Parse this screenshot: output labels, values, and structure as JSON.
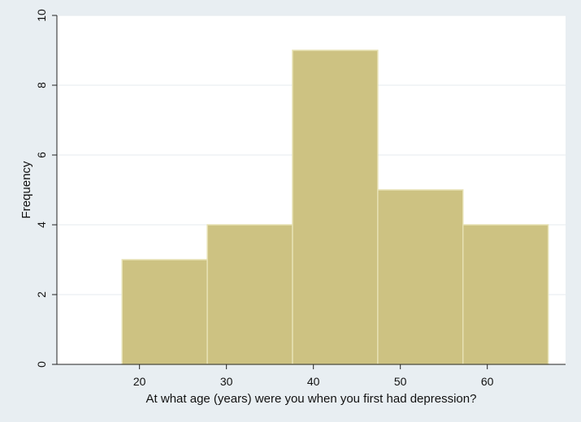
{
  "chart_data": {
    "type": "bar",
    "subtype": "histogram",
    "xlabel": "At what age (years) were you when you first had depression?",
    "ylabel": "Frequency",
    "bins": [
      {
        "from": 18.0,
        "to": 27.8,
        "value": 3
      },
      {
        "from": 27.8,
        "to": 37.6,
        "value": 4
      },
      {
        "from": 37.6,
        "to": 47.4,
        "value": 9
      },
      {
        "from": 47.4,
        "to": 57.2,
        "value": 5
      },
      {
        "from": 57.2,
        "to": 67.0,
        "value": 4
      }
    ],
    "xlim": [
      10.5,
      69
    ],
    "ylim": [
      0,
      10
    ],
    "xticks": [
      20,
      30,
      40,
      50,
      60
    ],
    "yticks": [
      0,
      2,
      4,
      6,
      8,
      10
    ],
    "grid": "horizontal",
    "colors": {
      "bar_fill": "#cdc282",
      "bar_edge": "#e6e1b3",
      "plot_bg": "#ffffff",
      "outer_bg": "#e8eef2",
      "grid": "#e6ebef",
      "axis": "#222222"
    }
  }
}
